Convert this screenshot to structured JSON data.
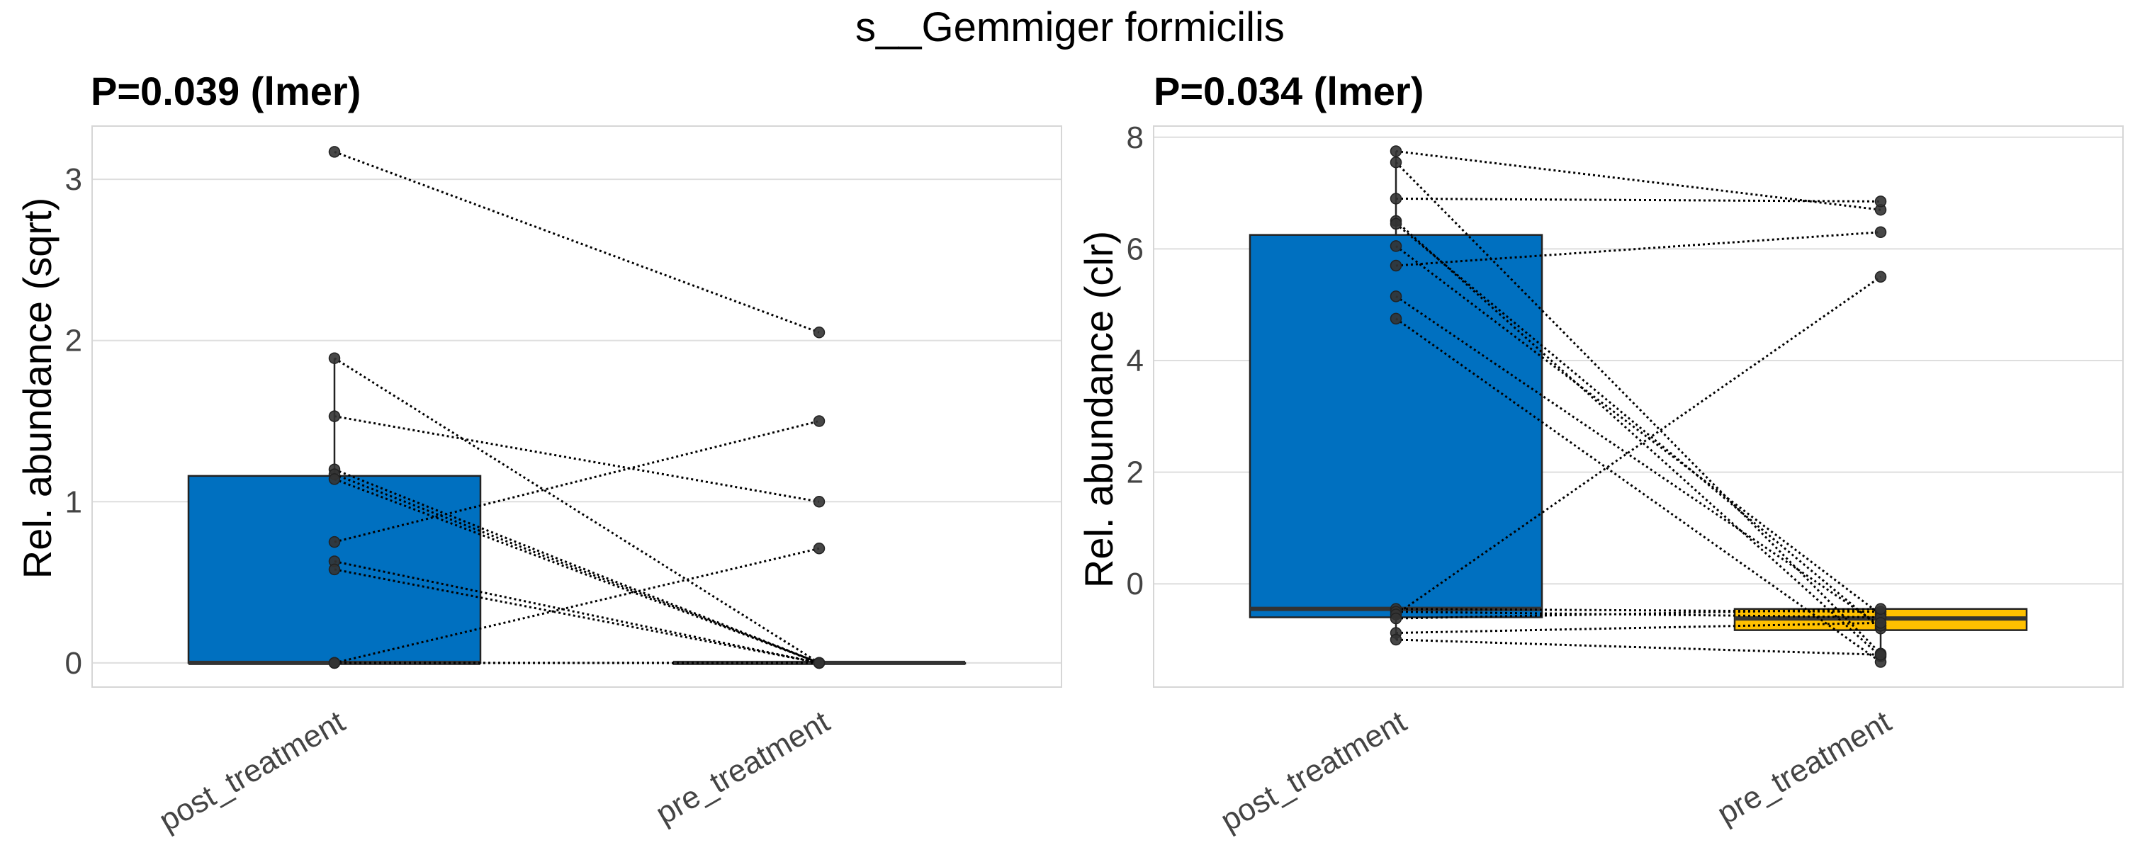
{
  "figure_title": "s__Gemmiger formicilis",
  "colors": {
    "post_treatment": "#0070C0",
    "pre_treatment": "#FFC000",
    "points": "#333333"
  },
  "chart_data": [
    {
      "type": "box",
      "title": "P=0.039 (lmer)",
      "xlabel": "",
      "ylabel": "Rel. abundance (sqrt)",
      "categories": [
        "post_treatment",
        "pre_treatment"
      ],
      "ylim": [
        -0.15,
        3.33
      ],
      "yticks": [
        0,
        1,
        2,
        3
      ],
      "grid": true,
      "boxes": [
        {
          "category": "post_treatment",
          "q1": 0,
          "median": 0,
          "q3": 1.16,
          "whisker_low": 0,
          "whisker_high": 1.89,
          "color": "#0070C0"
        },
        {
          "category": "pre_treatment",
          "q1": 0,
          "median": 0,
          "q3": 0,
          "whisker_low": 0,
          "whisker_high": 0,
          "color": "#FFC000"
        }
      ],
      "pairs": [
        {
          "post_treatment": 3.17,
          "pre_treatment": 2.05
        },
        {
          "post_treatment": 1.89,
          "pre_treatment": 0
        },
        {
          "post_treatment": 1.53,
          "pre_treatment": 1.0
        },
        {
          "post_treatment": 1.2,
          "pre_treatment": 0
        },
        {
          "post_treatment": 1.17,
          "pre_treatment": 0
        },
        {
          "post_treatment": 1.14,
          "pre_treatment": 0
        },
        {
          "post_treatment": 0.75,
          "pre_treatment": 1.5
        },
        {
          "post_treatment": 0.63,
          "pre_treatment": 0
        },
        {
          "post_treatment": 0.58,
          "pre_treatment": 0
        },
        {
          "post_treatment": 0,
          "pre_treatment": 0.71
        },
        {
          "post_treatment": 0,
          "pre_treatment": 0
        },
        {
          "post_treatment": 0,
          "pre_treatment": 0
        }
      ]
    },
    {
      "type": "box",
      "title": "P=0.034 (lmer)",
      "xlabel": "",
      "ylabel": "Rel. abundance (clr)",
      "categories": [
        "post_treatment",
        "pre_treatment"
      ],
      "ylim": [
        -1.85,
        8.2
      ],
      "yticks": [
        0,
        2,
        4,
        6,
        8
      ],
      "grid": true,
      "boxes": [
        {
          "category": "post_treatment",
          "q1": -0.6,
          "median": -0.45,
          "q3": 6.25,
          "whisker_low": -1.0,
          "whisker_high": 7.75,
          "color": "#0070C0"
        },
        {
          "category": "pre_treatment",
          "q1": -0.83,
          "median": -0.62,
          "q3": -0.45,
          "whisker_low": -1.4,
          "whisker_high": -0.45,
          "color": "#FFC000"
        }
      ],
      "pairs": [
        {
          "post_treatment": 7.75,
          "pre_treatment": 6.7
        },
        {
          "post_treatment": 7.55,
          "pre_treatment": -1.25
        },
        {
          "post_treatment": 6.9,
          "pre_treatment": 6.85
        },
        {
          "post_treatment": 6.5,
          "pre_treatment": -1.3
        },
        {
          "post_treatment": 6.45,
          "pre_treatment": -0.8
        },
        {
          "post_treatment": 6.05,
          "pre_treatment": -0.55
        },
        {
          "post_treatment": 5.7,
          "pre_treatment": 6.3
        },
        {
          "post_treatment": 5.15,
          "pre_treatment": -0.75
        },
        {
          "post_treatment": 4.75,
          "pre_treatment": -1.4
        },
        {
          "post_treatment": -0.45,
          "pre_treatment": -0.5
        },
        {
          "post_treatment": -0.5,
          "pre_treatment": -0.6
        },
        {
          "post_treatment": -0.55,
          "pre_treatment": 5.5
        },
        {
          "post_treatment": -0.62,
          "pre_treatment": -0.45
        },
        {
          "post_treatment": -0.88,
          "pre_treatment": -0.7
        },
        {
          "post_treatment": -1.0,
          "pre_treatment": -1.27
        }
      ]
    }
  ]
}
